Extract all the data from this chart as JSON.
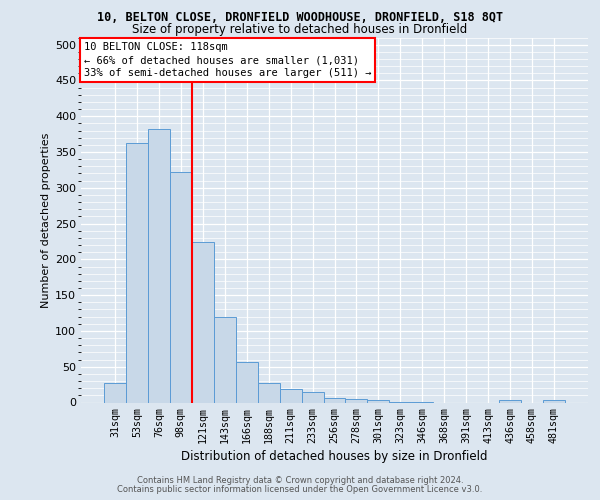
{
  "title": "10, BELTON CLOSE, DRONFIELD WOODHOUSE, DRONFIELD, S18 8QT",
  "subtitle": "Size of property relative to detached houses in Dronfield",
  "xlabel": "Distribution of detached houses by size in Dronfield",
  "ylabel": "Number of detached properties",
  "bar_color": "#c8d8e8",
  "bar_edge_color": "#5b9bd5",
  "categories": [
    "31sqm",
    "53sqm",
    "76sqm",
    "98sqm",
    "121sqm",
    "143sqm",
    "166sqm",
    "188sqm",
    "211sqm",
    "233sqm",
    "256sqm",
    "278sqm",
    "301sqm",
    "323sqm",
    "346sqm",
    "368sqm",
    "391sqm",
    "413sqm",
    "436sqm",
    "458sqm",
    "481sqm"
  ],
  "values": [
    27,
    362,
    382,
    322,
    224,
    120,
    57,
    27,
    19,
    14,
    6,
    5,
    3,
    1,
    1,
    0,
    0,
    0,
    4,
    0,
    4
  ],
  "ylim": [
    0,
    510
  ],
  "yticks": [
    0,
    50,
    100,
    150,
    200,
    250,
    300,
    350,
    400,
    450,
    500
  ],
  "vline_x": 3.5,
  "annotation_line1": "10 BELTON CLOSE: 118sqm",
  "annotation_line2": "← 66% of detached houses are smaller (1,031)",
  "annotation_line3": "33% of semi-detached houses are larger (511) →",
  "vline_color": "red",
  "footer_line1": "Contains HM Land Registry data © Crown copyright and database right 2024.",
  "footer_line2": "Contains public sector information licensed under the Open Government Licence v3.0.",
  "bg_color": "#dce6f0",
  "grid_color": "white"
}
